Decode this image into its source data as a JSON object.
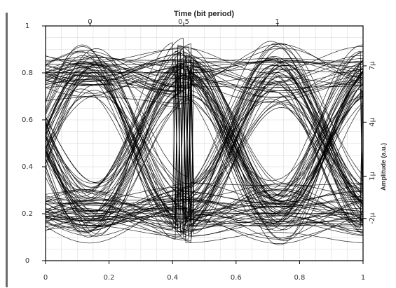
{
  "chart_data": {
    "type": "line",
    "title": "",
    "xlabel": "",
    "ylabel": "",
    "xlim": [
      0,
      1
    ],
    "ylim": [
      0,
      1
    ],
    "x_ticks": [
      "0",
      "0.2",
      "0.4",
      "0.6",
      "0.8",
      "1"
    ],
    "y_ticks": [
      "0",
      "0.2",
      "0.4",
      "0.6",
      "0.8",
      "1"
    ],
    "top_axis": {
      "label": "Time (bit period)",
      "ticks": [
        {
          "value": 0,
          "label": "0"
        },
        {
          "value": 0.5,
          "label": "0.5"
        },
        {
          "value": 1,
          "label": "1"
        }
      ],
      "map_to_bottom": {
        "start": 0.14,
        "period": 0.59
      }
    },
    "right_axis": {
      "label": "Amplitude (a.u.)",
      "ticks": [
        {
          "y": 0.83,
          "label": "7μ"
        },
        {
          "y": 0.59,
          "label": "4μ"
        },
        {
          "y": 0.36,
          "label": "1μ"
        },
        {
          "y": 0.18,
          "label": "-2μ"
        }
      ]
    },
    "grid": true,
    "legend": "none",
    "eye": {
      "bit_period": 0.59,
      "crossing_points": [
        0.14,
        0.73
      ],
      "levels_one": [
        0.7,
        0.9
      ],
      "levels_zero": [
        0.12,
        0.3
      ],
      "trace_count": 140,
      "line_color": "#000000",
      "line_opacity": 0.85
    }
  },
  "colors": {
    "background": "#ffffff",
    "grid": "#d6d6d6",
    "axis": "#000000",
    "left_bar": "#6b6b6b"
  }
}
